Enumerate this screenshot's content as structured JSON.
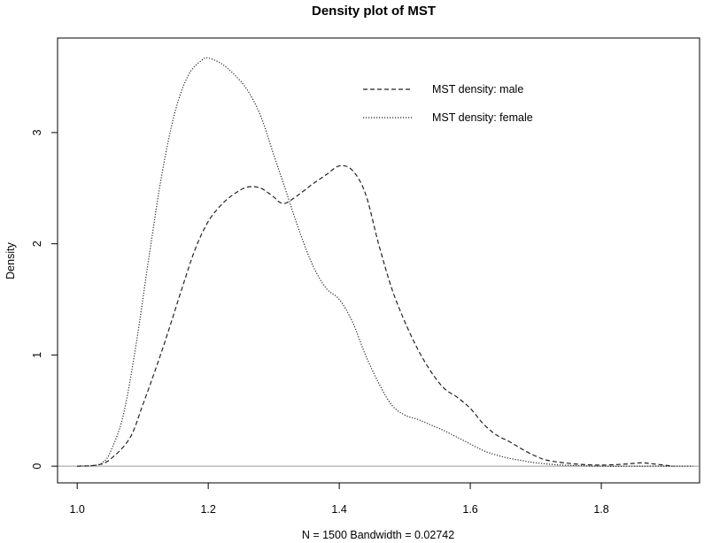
{
  "chart_data": {
    "type": "line",
    "title": "Density plot of MST",
    "xlabel": "N = 1500   Bandwidth = 0.02742",
    "ylabel": "Density",
    "xlim": [
      0.97,
      1.95
    ],
    "ylim": [
      -0.15,
      3.85
    ],
    "x_ticks": [
      1.0,
      1.2,
      1.4,
      1.6,
      1.8
    ],
    "x_tick_labels": [
      "1.0",
      "1.2",
      "1.4",
      "1.6",
      "1.8"
    ],
    "y_ticks": [
      0,
      1,
      2,
      3
    ],
    "y_tick_labels": [
      "0",
      "1",
      "2",
      "3"
    ],
    "zero_line": true,
    "grid": false,
    "legend_position": "top-right",
    "series": [
      {
        "name": "MST density: male",
        "line_style": "dashed",
        "color": "#222222",
        "points": [
          [
            1.0,
            0.0
          ],
          [
            1.03,
            0.01
          ],
          [
            1.05,
            0.06
          ],
          [
            1.08,
            0.25
          ],
          [
            1.1,
            0.55
          ],
          [
            1.13,
            1.05
          ],
          [
            1.16,
            1.6
          ],
          [
            1.18,
            1.95
          ],
          [
            1.2,
            2.2
          ],
          [
            1.22,
            2.35
          ],
          [
            1.24,
            2.45
          ],
          [
            1.26,
            2.51
          ],
          [
            1.28,
            2.5
          ],
          [
            1.3,
            2.42
          ],
          [
            1.31,
            2.37
          ],
          [
            1.32,
            2.37
          ],
          [
            1.34,
            2.45
          ],
          [
            1.36,
            2.54
          ],
          [
            1.38,
            2.62
          ],
          [
            1.4,
            2.7
          ],
          [
            1.42,
            2.66
          ],
          [
            1.44,
            2.45
          ],
          [
            1.46,
            2.0
          ],
          [
            1.48,
            1.6
          ],
          [
            1.5,
            1.3
          ],
          [
            1.52,
            1.05
          ],
          [
            1.54,
            0.85
          ],
          [
            1.56,
            0.7
          ],
          [
            1.58,
            0.62
          ],
          [
            1.6,
            0.52
          ],
          [
            1.62,
            0.38
          ],
          [
            1.64,
            0.28
          ],
          [
            1.66,
            0.22
          ],
          [
            1.68,
            0.15
          ],
          [
            1.7,
            0.09
          ],
          [
            1.72,
            0.05
          ],
          [
            1.76,
            0.02
          ],
          [
            1.8,
            0.01
          ],
          [
            1.84,
            0.02
          ],
          [
            1.86,
            0.03
          ],
          [
            1.88,
            0.02
          ],
          [
            1.91,
            0.0
          ]
        ]
      },
      {
        "name": "MST density: female",
        "line_style": "dotted",
        "color": "#222222",
        "points": [
          [
            1.0,
            0.0
          ],
          [
            1.03,
            0.01
          ],
          [
            1.04,
            0.04
          ],
          [
            1.05,
            0.12
          ],
          [
            1.07,
            0.45
          ],
          [
            1.09,
            1.1
          ],
          [
            1.11,
            1.9
          ],
          [
            1.13,
            2.65
          ],
          [
            1.15,
            3.2
          ],
          [
            1.17,
            3.52
          ],
          [
            1.19,
            3.65
          ],
          [
            1.2,
            3.67
          ],
          [
            1.22,
            3.62
          ],
          [
            1.24,
            3.52
          ],
          [
            1.26,
            3.38
          ],
          [
            1.28,
            3.15
          ],
          [
            1.3,
            2.8
          ],
          [
            1.32,
            2.45
          ],
          [
            1.34,
            2.1
          ],
          [
            1.36,
            1.8
          ],
          [
            1.38,
            1.6
          ],
          [
            1.4,
            1.5
          ],
          [
            1.42,
            1.3
          ],
          [
            1.44,
            1.0
          ],
          [
            1.46,
            0.75
          ],
          [
            1.48,
            0.55
          ],
          [
            1.5,
            0.46
          ],
          [
            1.52,
            0.42
          ],
          [
            1.54,
            0.37
          ],
          [
            1.56,
            0.32
          ],
          [
            1.58,
            0.26
          ],
          [
            1.6,
            0.2
          ],
          [
            1.62,
            0.14
          ],
          [
            1.64,
            0.1
          ],
          [
            1.66,
            0.07
          ],
          [
            1.68,
            0.05
          ],
          [
            1.7,
            0.03
          ],
          [
            1.74,
            0.01
          ],
          [
            1.8,
            0.0
          ],
          [
            1.86,
            0.0
          ],
          [
            1.94,
            0.0
          ]
        ]
      }
    ]
  }
}
